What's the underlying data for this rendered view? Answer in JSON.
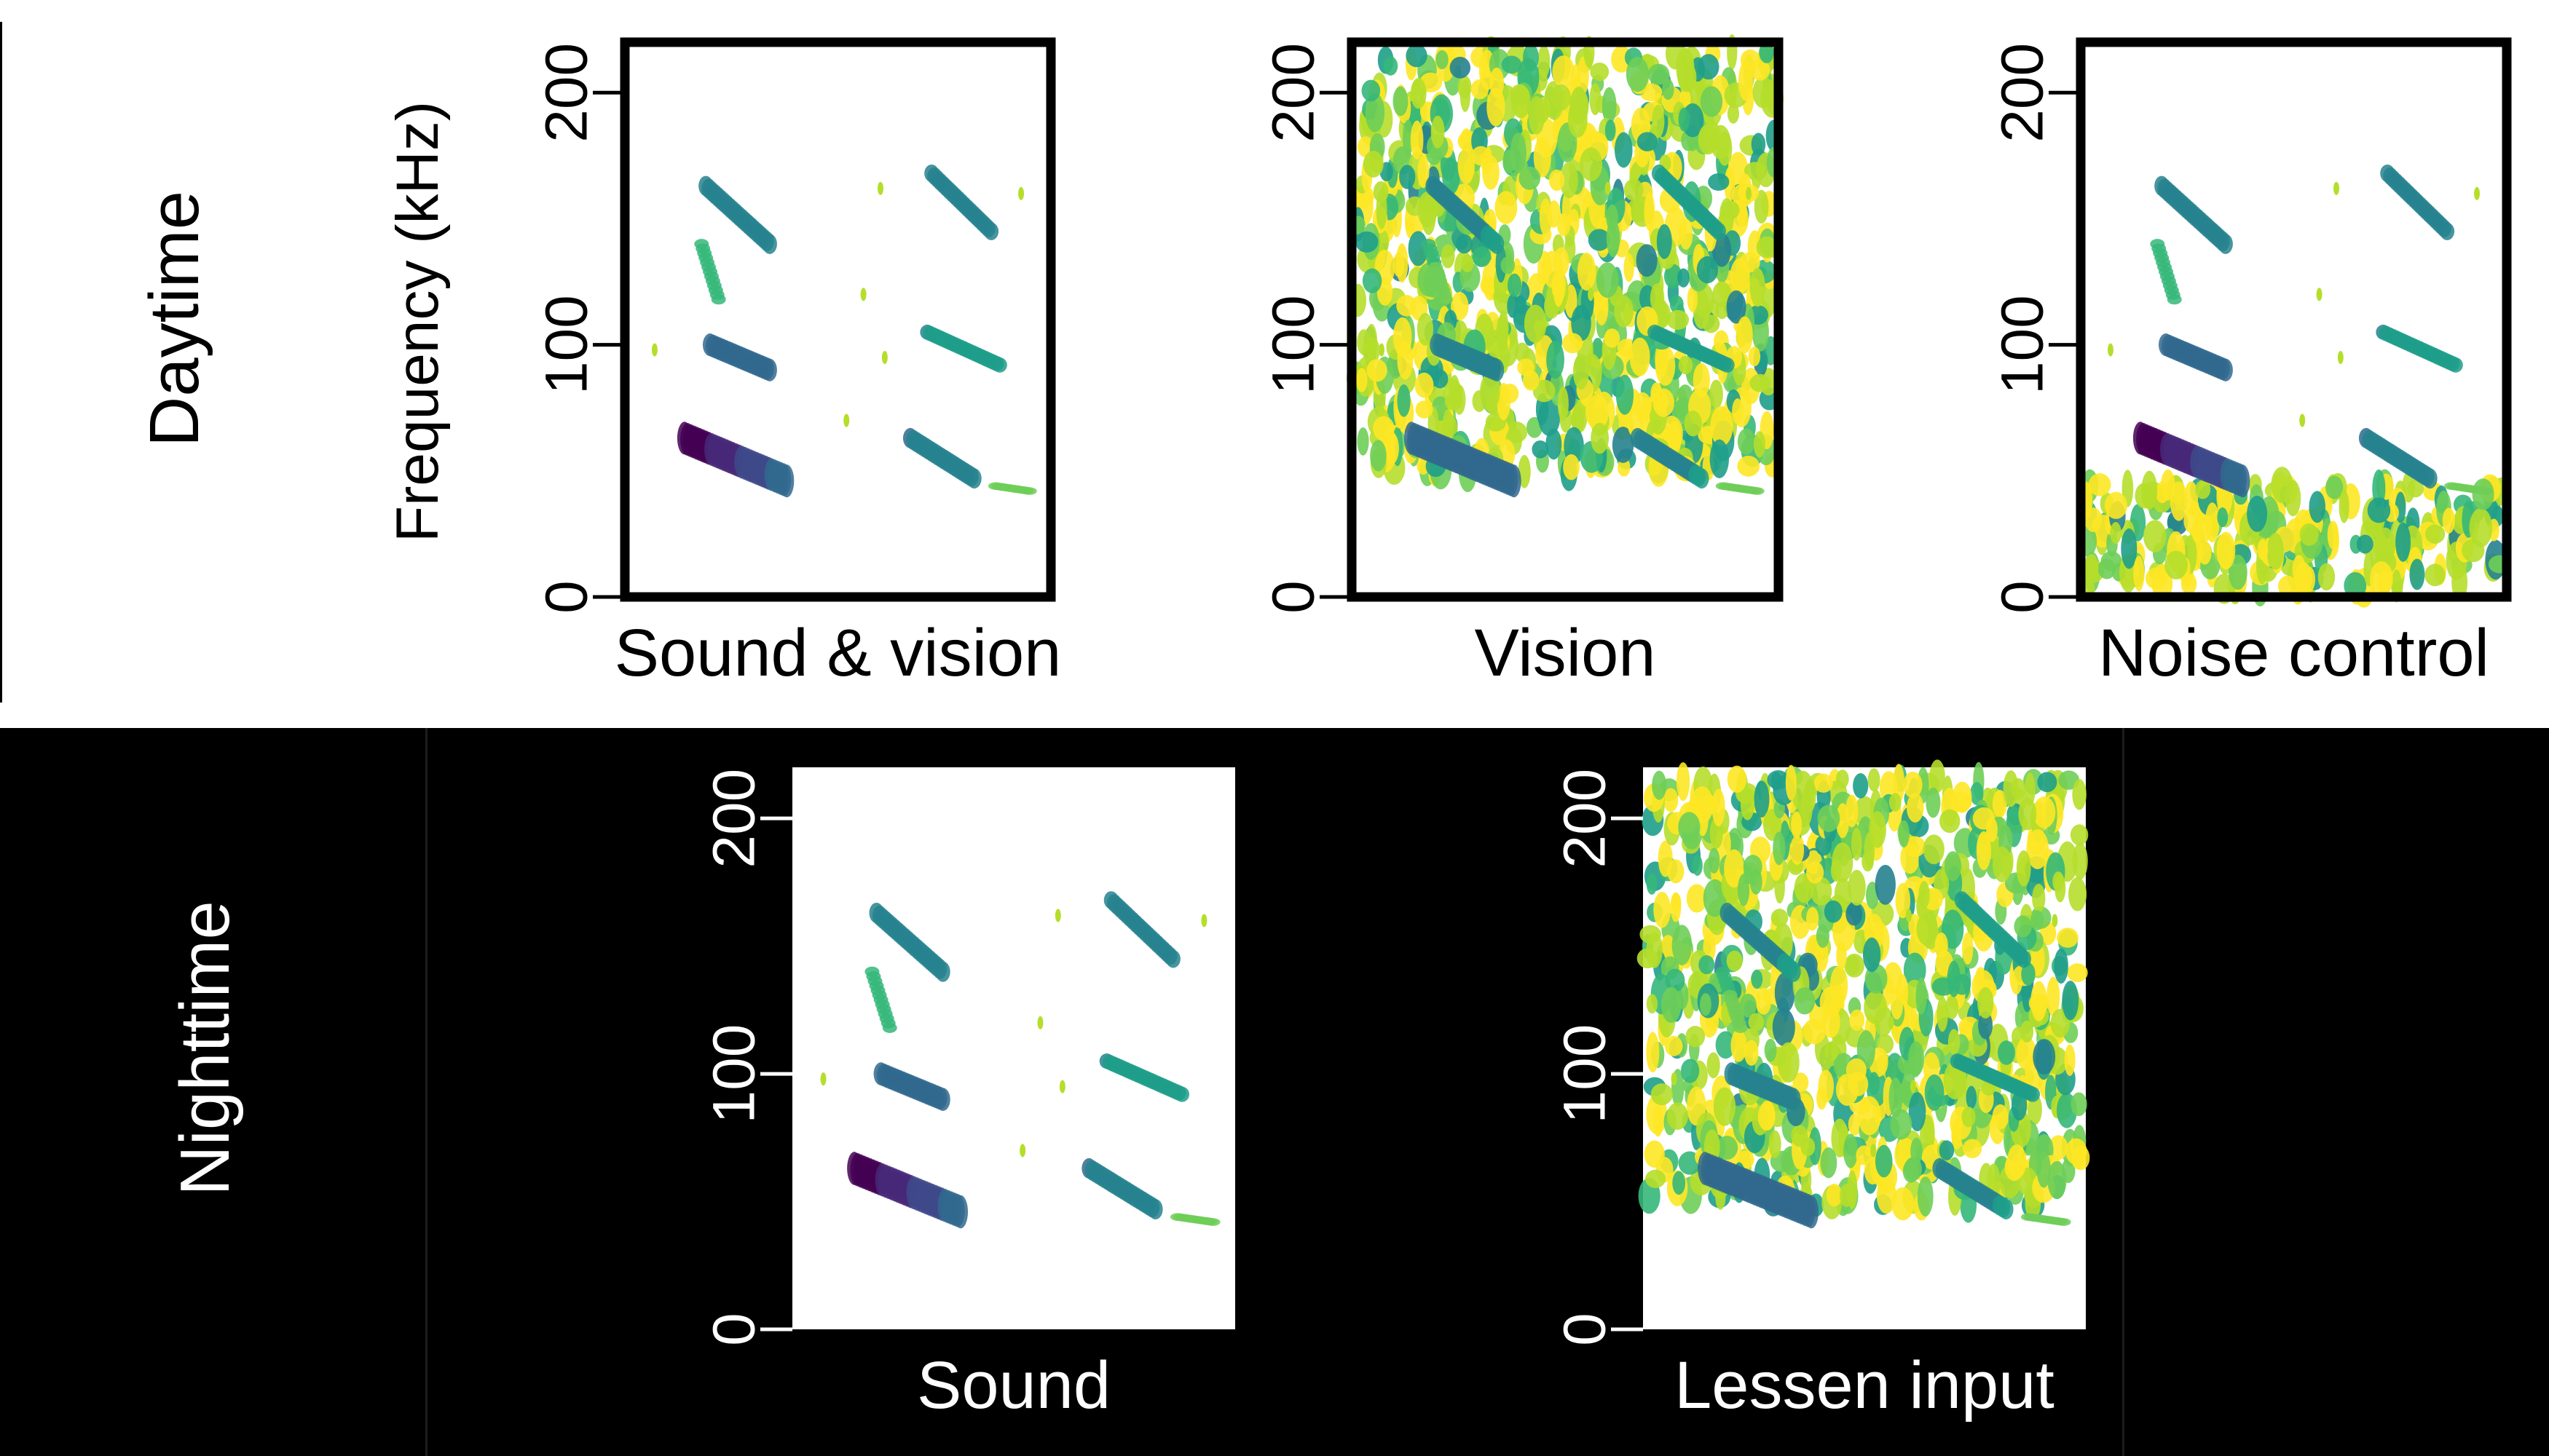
{
  "sections": {
    "day": "Daytime",
    "night": "Nighttime"
  },
  "colors": {
    "night_background": "#000000",
    "day_background": "#ffffff",
    "plot_background": "#ffffff",
    "colormap": [
      "#fde725",
      "#b5de2b",
      "#6ece58",
      "#35b779",
      "#1f9e89",
      "#26828e",
      "#31688e",
      "#3e4989",
      "#482878",
      "#440154"
    ]
  },
  "chart_data": [
    {
      "type": "heatmap",
      "section": "day",
      "title": "",
      "xlabel": "Sound & vision",
      "ylabel": "Frequency (kHz)",
      "ylim": [
        0,
        220
      ],
      "yticks": [
        0,
        100,
        200
      ],
      "noise_band_khz": null,
      "calls": "full"
    },
    {
      "type": "heatmap",
      "section": "day",
      "title": "",
      "xlabel": "Vision",
      "ylabel": "",
      "ylim": [
        0,
        220
      ],
      "yticks": [
        0,
        100,
        200
      ],
      "noise_band_khz": [
        45,
        220
      ],
      "calls": "faint"
    },
    {
      "type": "heatmap",
      "section": "day",
      "title": "",
      "xlabel": "Noise control",
      "ylabel": "",
      "ylim": [
        0,
        220
      ],
      "yticks": [
        0,
        100,
        200
      ],
      "noise_band_khz": [
        0,
        48
      ],
      "calls": "full"
    },
    {
      "type": "heatmap",
      "section": "night",
      "title": "",
      "xlabel": "Sound",
      "ylabel": "",
      "ylim": [
        0,
        220
      ],
      "yticks": [
        0,
        100,
        200
      ],
      "noise_band_khz": null,
      "calls": "full"
    },
    {
      "type": "heatmap",
      "section": "night",
      "title": "",
      "xlabel": "Lessen input",
      "ylabel": "",
      "ylim": [
        0,
        220
      ],
      "yticks": [
        0,
        100,
        200
      ],
      "noise_band_khz": [
        45,
        220
      ],
      "calls": "faint"
    }
  ]
}
